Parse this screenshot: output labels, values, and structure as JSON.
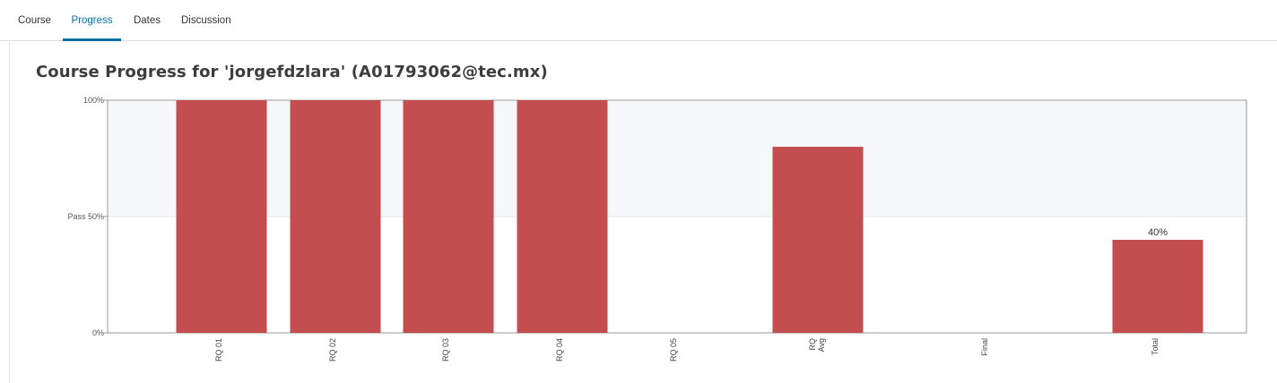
{
  "tabs": [
    {
      "label": "Course",
      "active": false
    },
    {
      "label": "Progress",
      "active": true
    },
    {
      "label": "Dates",
      "active": false
    },
    {
      "label": "Discussion",
      "active": false
    }
  ],
  "page_title": "Course Progress for 'jorgefdzlara' (A01793062@tec.mx)",
  "colors": {
    "bar": "#c44e4f",
    "pass_band": "#f6f7f9",
    "accent": "#0b6fa4"
  },
  "chart_data": {
    "type": "bar",
    "categories": [
      "RQ 01",
      "RQ 02",
      "RQ 03",
      "RQ 04",
      "RQ 05",
      "RQ Avg",
      "Final",
      "Total"
    ],
    "values": [
      100,
      100,
      100,
      100,
      0,
      80,
      0,
      40
    ],
    "data_labels": [
      "",
      "",
      "",
      "",
      "",
      "",
      "",
      "40%"
    ],
    "ylim": [
      0,
      100
    ],
    "yticks": [
      {
        "value": 0,
        "label": "0%"
      },
      {
        "value": 50,
        "label": "Pass 50%"
      },
      {
        "value": 100,
        "label": "100%"
      }
    ],
    "pass_threshold": 50
  }
}
